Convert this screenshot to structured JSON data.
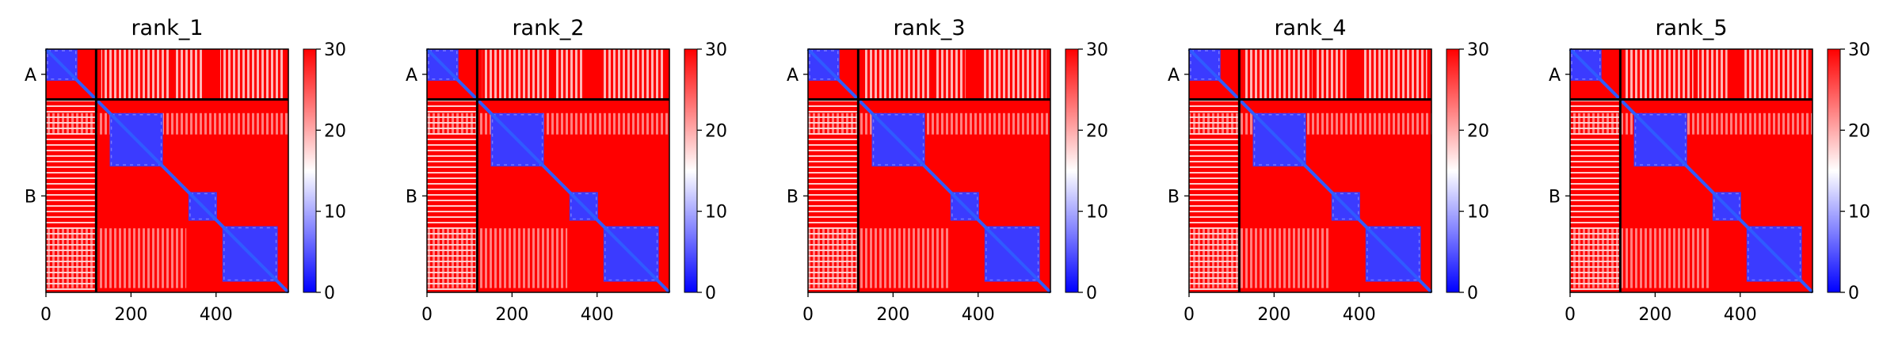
{
  "figure": {
    "colormap": {
      "low": "#0000ff",
      "mid": "#ffffff",
      "high": "#ff0000"
    }
  },
  "chart_data": [
    {
      "type": "heatmap",
      "title": "rank_1",
      "x_ticks": [
        0,
        200,
        400
      ],
      "y_tick_labels": [
        "A",
        "B"
      ],
      "colorbar_ticks": [
        0,
        10,
        20,
        30
      ],
      "value_range": [
        0,
        30
      ],
      "x_range": [
        0,
        570
      ],
      "chain_boundary": 118,
      "blocks": [
        {
          "start": 0,
          "end": 74
        },
        {
          "start": 150,
          "end": 275
        },
        {
          "start": 335,
          "end": 402
        },
        {
          "start": 415,
          "end": 545
        }
      ]
    },
    {
      "type": "heatmap",
      "title": "rank_2",
      "x_ticks": [
        0,
        200,
        400
      ],
      "y_tick_labels": [
        "A",
        "B"
      ],
      "colorbar_ticks": [
        0,
        10,
        20,
        30
      ],
      "value_range": [
        0,
        30
      ],
      "x_range": [
        0,
        570
      ],
      "chain_boundary": 118,
      "blocks": [
        {
          "start": 0,
          "end": 74
        },
        {
          "start": 150,
          "end": 275
        },
        {
          "start": 335,
          "end": 402
        },
        {
          "start": 415,
          "end": 545
        }
      ]
    },
    {
      "type": "heatmap",
      "title": "rank_3",
      "x_ticks": [
        0,
        200,
        400
      ],
      "y_tick_labels": [
        "A",
        "B"
      ],
      "colorbar_ticks": [
        0,
        10,
        20,
        30
      ],
      "value_range": [
        0,
        30
      ],
      "x_range": [
        0,
        570
      ],
      "chain_boundary": 118,
      "blocks": [
        {
          "start": 0,
          "end": 74
        },
        {
          "start": 150,
          "end": 275
        },
        {
          "start": 335,
          "end": 402
        },
        {
          "start": 415,
          "end": 545
        }
      ]
    },
    {
      "type": "heatmap",
      "title": "rank_4",
      "x_ticks": [
        0,
        200,
        400
      ],
      "y_tick_labels": [
        "A",
        "B"
      ],
      "colorbar_ticks": [
        0,
        10,
        20,
        30
      ],
      "value_range": [
        0,
        30
      ],
      "x_range": [
        0,
        570
      ],
      "chain_boundary": 118,
      "blocks": [
        {
          "start": 0,
          "end": 74
        },
        {
          "start": 150,
          "end": 275
        },
        {
          "start": 335,
          "end": 402
        },
        {
          "start": 415,
          "end": 545
        }
      ]
    },
    {
      "type": "heatmap",
      "title": "rank_5",
      "x_ticks": [
        0,
        200,
        400
      ],
      "y_tick_labels": [
        "A",
        "B"
      ],
      "colorbar_ticks": [
        0,
        10,
        20,
        30
      ],
      "value_range": [
        0,
        30
      ],
      "x_range": [
        0,
        570
      ],
      "chain_boundary": 118,
      "blocks": [
        {
          "start": 0,
          "end": 74
        },
        {
          "start": 150,
          "end": 275
        },
        {
          "start": 335,
          "end": 402
        },
        {
          "start": 415,
          "end": 545
        }
      ]
    }
  ]
}
